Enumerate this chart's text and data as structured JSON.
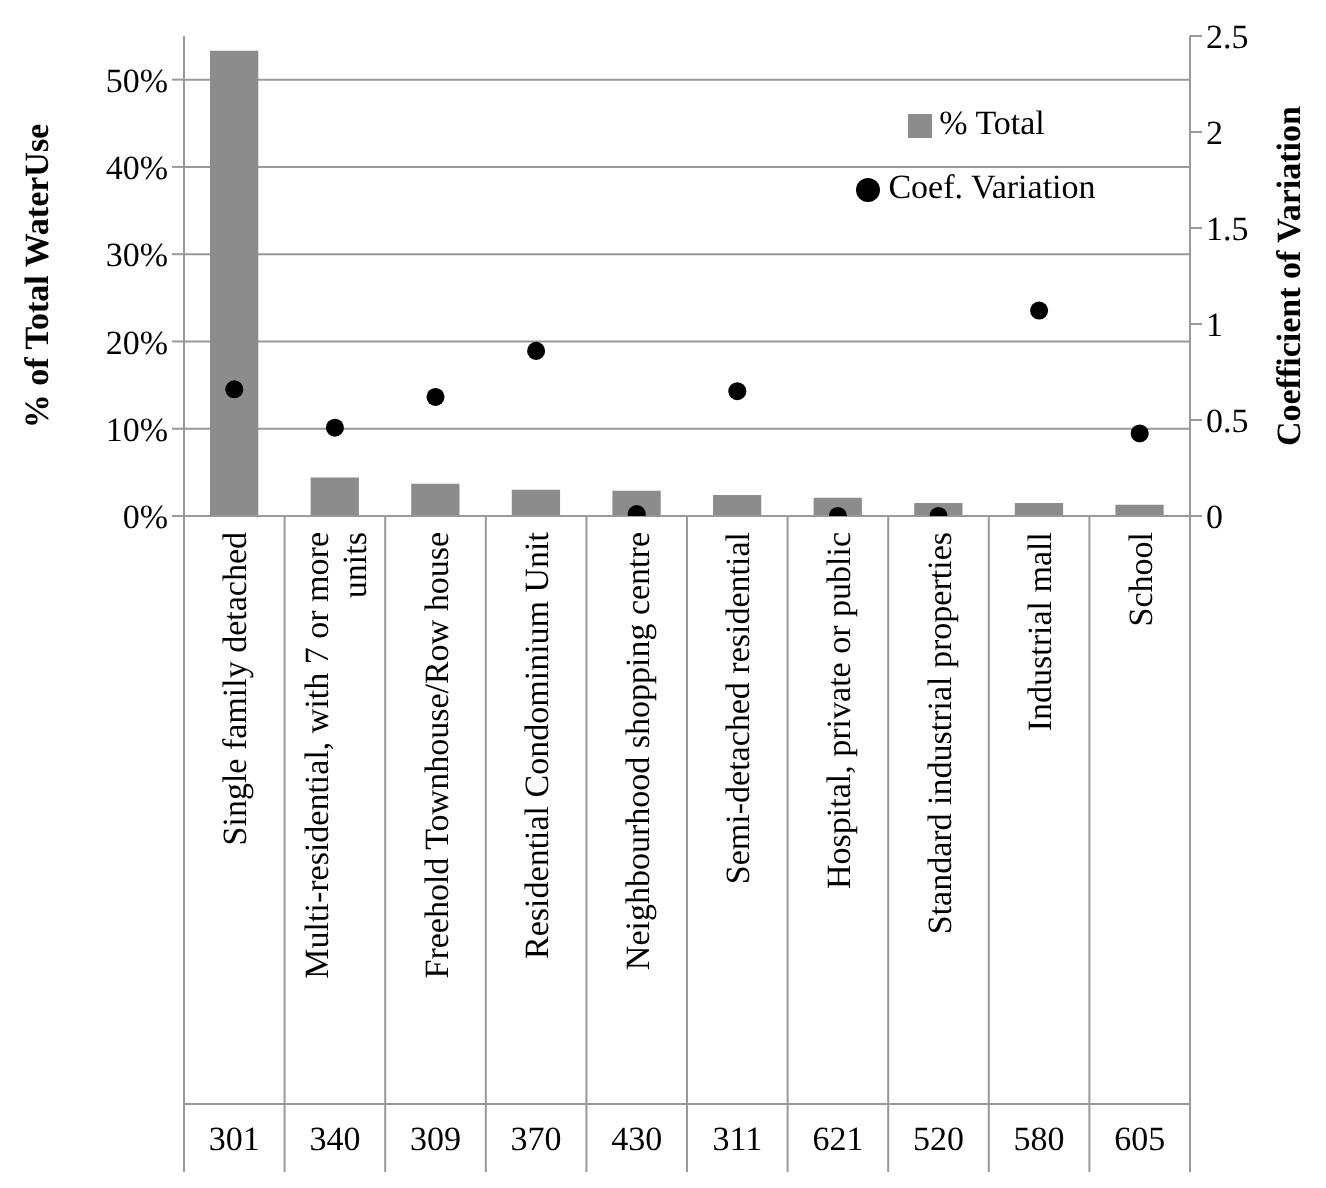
{
  "chart_data": {
    "type": "bar",
    "ylabel": "% of Total WaterUse",
    "y2label": "Coefficient of Variation",
    "categories": [
      "Single family detached",
      "Multi-residential, with 7 or more units",
      "Freehold Townhouse/Row house",
      "Residential Condominium Unit",
      "Neighbourhood shopping centre",
      "Semi-detached residential",
      "Hospital, private or public",
      "Standard industrial properties",
      "Industrial mall",
      "School"
    ],
    "series": [
      {
        "name": "% Total",
        "color": "#8c8c8c",
        "values": [
          53.3,
          4.4,
          3.7,
          3.0,
          2.9,
          2.4,
          2.1,
          1.5,
          1.5,
          1.3
        ]
      },
      {
        "name": "Coef. Variation",
        "type": "scatter",
        "axis": "y2",
        "color": "#000000",
        "marker": "circle",
        "values": [
          0.66,
          0.46,
          0.62,
          0.86,
          0.01,
          0.65,
          0.0,
          0.0,
          1.07,
          0.43
        ]
      }
    ],
    "ylim": [
      0,
      55
    ],
    "yticks": [
      {
        "value": 0,
        "label": "0%"
      },
      {
        "value": 10,
        "label": "10%"
      },
      {
        "value": 20,
        "label": "20%"
      },
      {
        "value": 30,
        "label": "30%"
      },
      {
        "value": 40,
        "label": "40%"
      },
      {
        "value": 50,
        "label": "50%"
      }
    ],
    "y2lim": [
      0,
      2.5
    ],
    "y2ticks": [
      0,
      {
        "value": 0.5,
        "label": "0.5"
      },
      1,
      {
        "value": 1.5,
        "label": "1.5"
      },
      2,
      {
        "value": 2.5,
        "label": "2.5"
      }
    ],
    "annotations": [
      "301",
      "340",
      "309",
      "370",
      "430",
      "311",
      "621",
      "520",
      "580",
      "605"
    ],
    "grid": "y",
    "legend": "top right"
  }
}
